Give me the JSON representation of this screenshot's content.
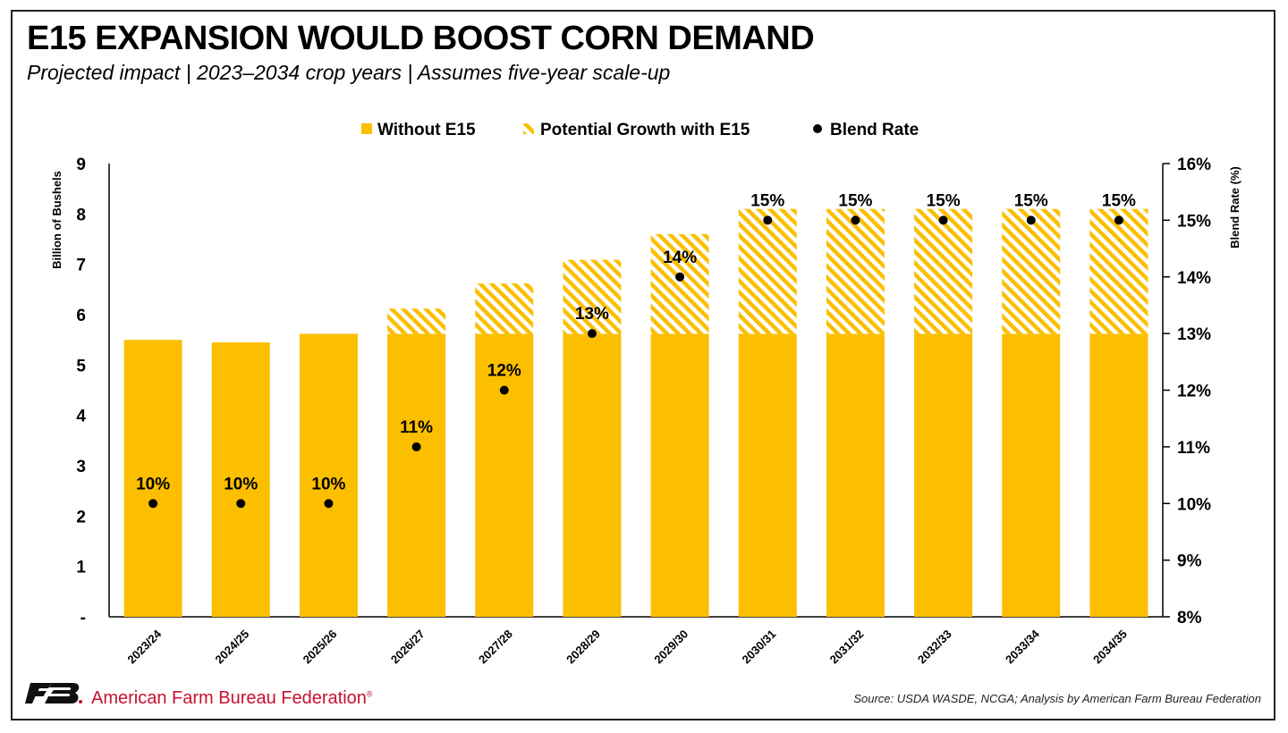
{
  "header": {
    "title": "E15 EXPANSION WOULD BOOST CORN DEMAND",
    "subtitle": "Projected impact | 2023–2034 crop years | Assumes five-year scale-up"
  },
  "footer": {
    "org": "American Farm Bureau Federation",
    "org_suffix": "®",
    "source": "Source: USDA WASDE, NCGA; Analysis by American Farm Bureau Federation",
    "logo_icon": "afbf-logo-icon",
    "org_color": "#c8102e"
  },
  "chart_data": {
    "type": "bar",
    "stacked": true,
    "categories": [
      "2023/24",
      "2024/25",
      "2025/26",
      "2026/27",
      "2027/28",
      "2028/29",
      "2029/30",
      "2030/31",
      "2031/32",
      "2032/33",
      "2033/34",
      "2034/35"
    ],
    "series": [
      {
        "name": "Without E15",
        "style": "solid",
        "color": "#fbbf00",
        "values": [
          5.5,
          5.45,
          5.62,
          5.62,
          5.62,
          5.62,
          5.62,
          5.62,
          5.62,
          5.62,
          5.62,
          5.62
        ]
      },
      {
        "name": "Potential Growth with E15",
        "style": "hatched",
        "color": "#fbbf00",
        "values": [
          0,
          0,
          0,
          0.5,
          1.0,
          1.47,
          1.98,
          2.48,
          2.48,
          2.48,
          2.48,
          2.48
        ]
      },
      {
        "name": "Blend Rate",
        "style": "dot",
        "axis": "right",
        "color": "#000000",
        "values": [
          10,
          10,
          10,
          11,
          12,
          13,
          14,
          15,
          15,
          15,
          15,
          15
        ],
        "labels": [
          "10%",
          "10%",
          "10%",
          "11%",
          "12%",
          "13%",
          "14%",
          "15%",
          "15%",
          "15%",
          "15%",
          "15%"
        ]
      }
    ],
    "ylabel": "Billion of Bushels",
    "ylim": [
      0,
      9
    ],
    "yticks": [
      "-",
      "1",
      "2",
      "3",
      "4",
      "5",
      "6",
      "7",
      "8",
      "9"
    ],
    "y2label": "Blend Rate (%)",
    "y2lim": [
      8,
      16
    ],
    "y2ticks": [
      "8%",
      "9%",
      "10%",
      "11%",
      "12%",
      "13%",
      "14%",
      "15%",
      "16%"
    ],
    "legend_position": "top-center",
    "grid": false
  }
}
